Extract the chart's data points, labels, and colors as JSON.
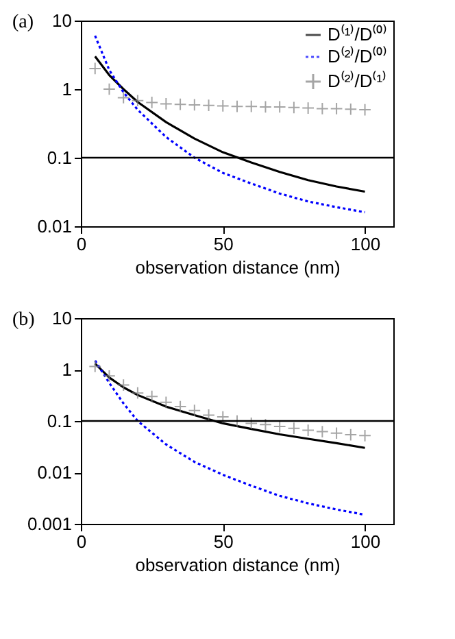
{
  "chart_data": [
    {
      "type": "line",
      "title": "(a)",
      "xlabel": "observation distance (nm)",
      "log": "y",
      "legend": "top right",
      "xlim": [
        0,
        110
      ],
      "xticks": [
        0,
        50,
        100
      ],
      "ylim": [
        0.01,
        10
      ],
      "yticks": [
        0.01,
        0.1,
        1,
        10
      ],
      "grid": false,
      "ref_lines": [
        {
          "axis": "y",
          "value": 0.1,
          "color": "#000000"
        }
      ],
      "series": [
        {
          "name": "D⁽¹⁾/D⁽⁰⁾",
          "color": "#000000",
          "line_style": "solid",
          "x": [
            5,
            10,
            15,
            20,
            30,
            40,
            50,
            60,
            70,
            80,
            90,
            100
          ],
          "values": [
            3,
            1.6,
            1.0,
            0.65,
            0.33,
            0.19,
            0.12,
            0.085,
            0.062,
            0.047,
            0.038,
            0.032
          ]
        },
        {
          "name": "D⁽²⁾/D⁽⁰⁾",
          "color": "#0000ff",
          "line_style": "dotted",
          "x": [
            5,
            10,
            15,
            20,
            30,
            40,
            50,
            60,
            70,
            80,
            90,
            100
          ],
          "values": [
            6,
            1.9,
            0.9,
            0.5,
            0.2,
            0.1,
            0.06,
            0.042,
            0.03,
            0.023,
            0.019,
            0.016
          ]
        },
        {
          "name": "D⁽²⁾/D⁽¹⁾",
          "color": "#808080",
          "type": "scatter",
          "marker": "cross",
          "x": [
            5,
            10,
            15,
            20,
            25,
            30,
            35,
            40,
            45,
            50,
            55,
            60,
            65,
            70,
            75,
            80,
            85,
            90,
            95,
            100
          ],
          "values": [
            2.0,
            1.0,
            0.75,
            0.68,
            0.64,
            0.61,
            0.6,
            0.59,
            0.58,
            0.57,
            0.56,
            0.56,
            0.55,
            0.55,
            0.54,
            0.53,
            0.52,
            0.52,
            0.51,
            0.5
          ]
        }
      ]
    },
    {
      "type": "line",
      "title": "(b)",
      "xlabel": "observation distance (nm)",
      "log": "y",
      "legend": "top right",
      "xlim": [
        0,
        110
      ],
      "xticks": [
        0,
        50,
        100
      ],
      "ylim": [
        0.001,
        10
      ],
      "yticks": [
        0.001,
        0.01,
        0.1,
        1,
        10
      ],
      "grid": false,
      "ref_lines": [
        {
          "axis": "y",
          "value": 0.1,
          "color": "#000000"
        }
      ],
      "series": [
        {
          "name": "D⁽¹⁾/D⁽⁰⁾",
          "color": "#000000",
          "line_style": "solid",
          "x": [
            5,
            10,
            15,
            20,
            30,
            40,
            50,
            60,
            70,
            80,
            90,
            100
          ],
          "values": [
            1.3,
            0.7,
            0.45,
            0.32,
            0.19,
            0.13,
            0.09,
            0.07,
            0.055,
            0.045,
            0.037,
            0.03
          ]
        },
        {
          "name": "D⁽²⁾/D⁽⁰⁾",
          "color": "#0000ff",
          "line_style": "dotted",
          "x": [
            5,
            10,
            15,
            20,
            30,
            40,
            50,
            60,
            70,
            80,
            90,
            100
          ],
          "values": [
            1.5,
            0.55,
            0.22,
            0.1,
            0.035,
            0.016,
            0.009,
            0.0055,
            0.0035,
            0.0025,
            0.0019,
            0.0015
          ]
        },
        {
          "name": "D⁽²⁾/D⁽¹⁾",
          "color": "#808080",
          "type": "scatter",
          "marker": "cross",
          "x": [
            5,
            10,
            15,
            20,
            25,
            30,
            35,
            40,
            45,
            50,
            55,
            60,
            65,
            70,
            75,
            80,
            85,
            90,
            95,
            100
          ],
          "values": [
            1.15,
            0.75,
            0.5,
            0.35,
            0.3,
            0.23,
            0.19,
            0.16,
            0.13,
            0.12,
            0.1,
            0.09,
            0.085,
            0.078,
            0.072,
            0.066,
            0.062,
            0.058,
            0.054,
            0.052
          ]
        }
      ]
    }
  ]
}
